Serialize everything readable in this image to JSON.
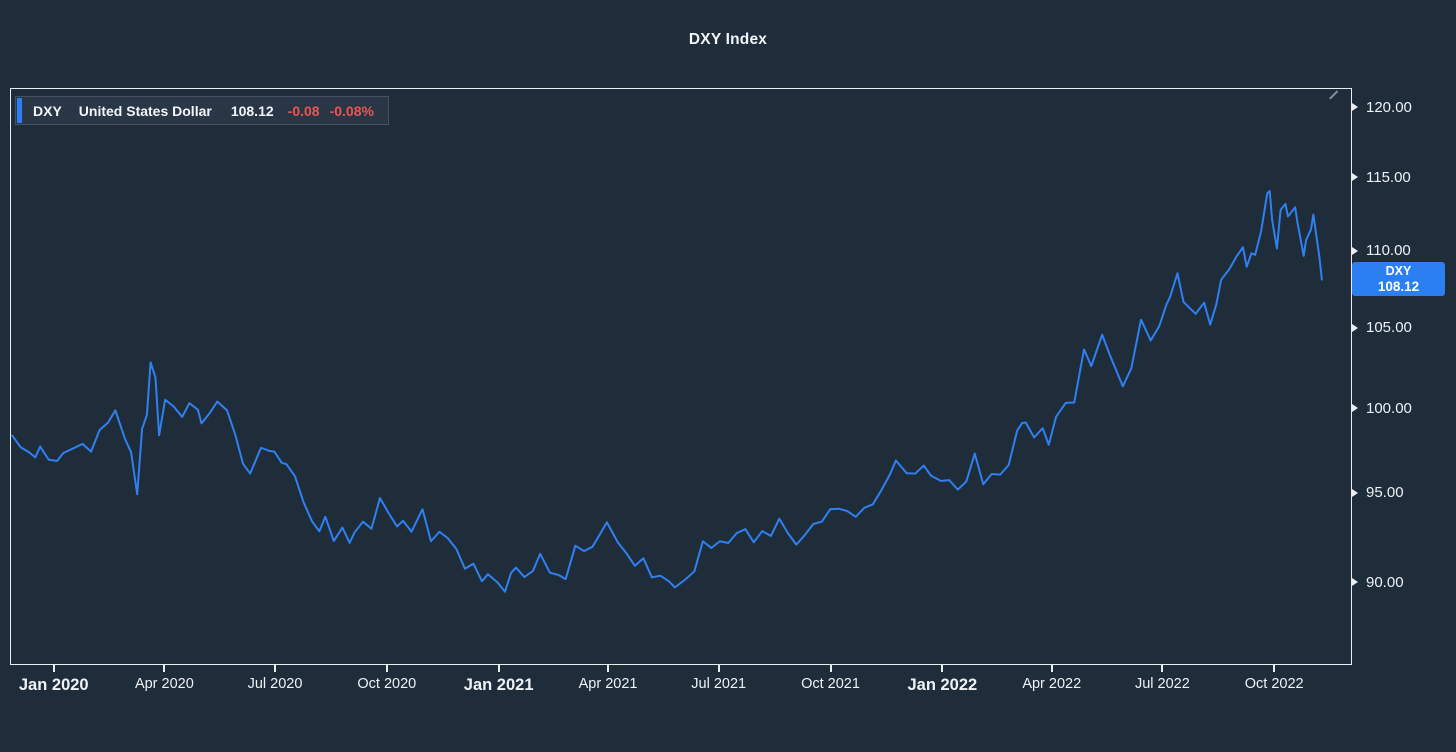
{
  "page": {
    "title": "DXY Index"
  },
  "legend": {
    "symbol": "DXY",
    "name": "United States Dollar",
    "last": "108.12",
    "change": "-0.08",
    "change_pct": "-0.08%"
  },
  "price_label": {
    "symbol": "DXY",
    "value": "108.12"
  },
  "colors": {
    "background": "#1f2c3a",
    "line": "#2f80f0",
    "badge": "#2b7ff2",
    "accent_bar": "#2b7ff2",
    "negative": "#ef5350",
    "axis_text": "#edf2f7",
    "frame": "#e9eef3",
    "title_text": "#f2f6fa"
  },
  "chart_data": {
    "type": "line",
    "title": "DXY Index",
    "series_name": "DXY — United States Dollar",
    "grid": false,
    "legend_position": "top-left",
    "y_scale": "log",
    "y_domain": [
      85.6,
      121.4
    ],
    "x_domain": [
      "2019-11-26",
      "2022-12-04"
    ],
    "last_price": 108.12,
    "change": -0.08,
    "change_pct": -0.08,
    "y_ticks": [
      {
        "value": 120,
        "label": "120.00"
      },
      {
        "value": 115,
        "label": "115.00"
      },
      {
        "value": 110,
        "label": "110.00"
      },
      {
        "value": 105,
        "label": "105.00"
      },
      {
        "value": 100,
        "label": "100.00"
      },
      {
        "value": 95,
        "label": "95.00"
      },
      {
        "value": 90,
        "label": "90.00"
      }
    ],
    "x_ticks": [
      {
        "date": "2020-01-01",
        "label": "Jan 2020",
        "bold": true
      },
      {
        "date": "2020-04-01",
        "label": "Apr 2020",
        "bold": false
      },
      {
        "date": "2020-07-01",
        "label": "Jul 2020",
        "bold": false
      },
      {
        "date": "2020-10-01",
        "label": "Oct 2020",
        "bold": false
      },
      {
        "date": "2021-01-01",
        "label": "Jan 2021",
        "bold": true
      },
      {
        "date": "2021-04-01",
        "label": "Apr 2021",
        "bold": false
      },
      {
        "date": "2021-07-01",
        "label": "Jul 2021",
        "bold": false
      },
      {
        "date": "2021-10-01",
        "label": "Oct 2021",
        "bold": false
      },
      {
        "date": "2022-01-01",
        "label": "Jan 2022",
        "bold": true
      },
      {
        "date": "2022-04-01",
        "label": "Apr 2022",
        "bold": false
      },
      {
        "date": "2022-07-01",
        "label": "Jul 2022",
        "bold": false
      },
      {
        "date": "2022-10-01",
        "label": "Oct 2022",
        "bold": false
      }
    ],
    "points": [
      [
        "2019-11-27",
        98.35
      ],
      [
        "2019-12-04",
        97.65
      ],
      [
        "2019-12-11",
        97.35
      ],
      [
        "2019-12-16",
        97.05
      ],
      [
        "2019-12-20",
        97.69
      ],
      [
        "2019-12-27",
        96.92
      ],
      [
        "2020-01-03",
        96.84
      ],
      [
        "2020-01-08",
        97.3
      ],
      [
        "2020-01-17",
        97.61
      ],
      [
        "2020-01-24",
        97.85
      ],
      [
        "2020-01-31",
        97.39
      ],
      [
        "2020-02-07",
        98.68
      ],
      [
        "2020-02-14",
        99.12
      ],
      [
        "2020-02-20",
        99.86
      ],
      [
        "2020-02-28",
        98.13
      ],
      [
        "2020-03-04",
        97.35
      ],
      [
        "2020-03-09",
        94.9
      ],
      [
        "2020-03-13",
        98.75
      ],
      [
        "2020-03-17",
        99.6
      ],
      [
        "2020-03-20",
        102.82
      ],
      [
        "2020-03-24",
        101.87
      ],
      [
        "2020-03-27",
        98.36
      ],
      [
        "2020-04-01",
        100.51
      ],
      [
        "2020-04-08",
        100.1
      ],
      [
        "2020-04-15",
        99.47
      ],
      [
        "2020-04-21",
        100.3
      ],
      [
        "2020-04-28",
        99.9
      ],
      [
        "2020-05-01",
        99.08
      ],
      [
        "2020-05-08",
        99.73
      ],
      [
        "2020-05-14",
        100.4
      ],
      [
        "2020-05-22",
        99.86
      ],
      [
        "2020-05-29",
        98.34
      ],
      [
        "2020-06-04",
        96.7
      ],
      [
        "2020-06-10",
        96.1
      ],
      [
        "2020-06-19",
        97.62
      ],
      [
        "2020-06-26",
        97.43
      ],
      [
        "2020-06-30",
        97.39
      ],
      [
        "2020-07-06",
        96.73
      ],
      [
        "2020-07-10",
        96.65
      ],
      [
        "2020-07-17",
        95.94
      ],
      [
        "2020-07-24",
        94.44
      ],
      [
        "2020-07-31",
        93.35
      ],
      [
        "2020-08-06",
        92.79
      ],
      [
        "2020-08-11",
        93.61
      ],
      [
        "2020-08-18",
        92.24
      ],
      [
        "2020-08-25",
        93.0
      ],
      [
        "2020-08-31",
        92.14
      ],
      [
        "2020-09-04",
        92.72
      ],
      [
        "2020-09-11",
        93.33
      ],
      [
        "2020-09-18",
        92.93
      ],
      [
        "2020-09-25",
        94.68
      ],
      [
        "2020-10-02",
        93.84
      ],
      [
        "2020-10-09",
        93.06
      ],
      [
        "2020-10-14",
        93.38
      ],
      [
        "2020-10-21",
        92.77
      ],
      [
        "2020-10-30",
        94.04
      ],
      [
        "2020-11-06",
        92.23
      ],
      [
        "2020-11-13",
        92.76
      ],
      [
        "2020-11-20",
        92.39
      ],
      [
        "2020-11-27",
        91.79
      ],
      [
        "2020-12-04",
        90.7
      ],
      [
        "2020-12-11",
        90.98
      ],
      [
        "2020-12-18",
        90.02
      ],
      [
        "2020-12-23",
        90.4
      ],
      [
        "2020-12-31",
        89.94
      ],
      [
        "2021-01-06",
        89.44
      ],
      [
        "2021-01-11",
        90.47
      ],
      [
        "2021-01-15",
        90.77
      ],
      [
        "2021-01-22",
        90.24
      ],
      [
        "2021-01-29",
        90.58
      ],
      [
        "2021-02-04",
        91.53
      ],
      [
        "2021-02-12",
        90.48
      ],
      [
        "2021-02-19",
        90.36
      ],
      [
        "2021-02-25",
        90.13
      ],
      [
        "2021-03-05",
        91.98
      ],
      [
        "2021-03-12",
        91.68
      ],
      [
        "2021-03-19",
        91.92
      ],
      [
        "2021-03-26",
        92.72
      ],
      [
        "2021-03-31",
        93.3
      ],
      [
        "2021-04-09",
        92.16
      ],
      [
        "2021-04-16",
        91.56
      ],
      [
        "2021-04-23",
        90.86
      ],
      [
        "2021-04-30",
        91.28
      ],
      [
        "2021-05-07",
        90.23
      ],
      [
        "2021-05-14",
        90.32
      ],
      [
        "2021-05-21",
        90.02
      ],
      [
        "2021-05-26",
        89.68
      ],
      [
        "2021-06-04",
        90.14
      ],
      [
        "2021-06-11",
        90.56
      ],
      [
        "2021-06-18",
        92.23
      ],
      [
        "2021-06-25",
        91.85
      ],
      [
        "2021-07-02",
        92.23
      ],
      [
        "2021-07-09",
        92.13
      ],
      [
        "2021-07-16",
        92.69
      ],
      [
        "2021-07-23",
        92.91
      ],
      [
        "2021-07-30",
        92.17
      ],
      [
        "2021-08-06",
        92.8
      ],
      [
        "2021-08-13",
        92.52
      ],
      [
        "2021-08-20",
        93.5
      ],
      [
        "2021-08-27",
        92.69
      ],
      [
        "2021-09-03",
        92.04
      ],
      [
        "2021-09-10",
        92.58
      ],
      [
        "2021-09-17",
        93.2
      ],
      [
        "2021-09-24",
        93.33
      ],
      [
        "2021-10-01",
        94.04
      ],
      [
        "2021-10-08",
        94.07
      ],
      [
        "2021-10-15",
        93.94
      ],
      [
        "2021-10-22",
        93.61
      ],
      [
        "2021-10-29",
        94.12
      ],
      [
        "2021-11-05",
        94.32
      ],
      [
        "2021-11-12",
        95.13
      ],
      [
        "2021-11-19",
        96.03
      ],
      [
        "2021-11-24",
        96.87
      ],
      [
        "2021-12-03",
        96.12
      ],
      [
        "2021-12-10",
        96.1
      ],
      [
        "2021-12-17",
        96.57
      ],
      [
        "2021-12-23",
        95.98
      ],
      [
        "2021-12-31",
        95.67
      ],
      [
        "2022-01-07",
        95.72
      ],
      [
        "2022-01-14",
        95.17
      ],
      [
        "2022-01-21",
        95.64
      ],
      [
        "2022-01-28",
        97.27
      ],
      [
        "2022-02-04",
        95.48
      ],
      [
        "2022-02-11",
        96.08
      ],
      [
        "2022-02-18",
        96.04
      ],
      [
        "2022-02-25",
        96.61
      ],
      [
        "2022-03-04",
        98.65
      ],
      [
        "2022-03-08",
        99.09
      ],
      [
        "2022-03-11",
        99.13
      ],
      [
        "2022-03-18",
        98.23
      ],
      [
        "2022-03-25",
        98.79
      ],
      [
        "2022-03-30",
        97.8
      ],
      [
        "2022-04-05",
        99.47
      ],
      [
        "2022-04-13",
        100.32
      ],
      [
        "2022-04-20",
        100.34
      ],
      [
        "2022-04-28",
        103.63
      ],
      [
        "2022-05-04",
        102.59
      ],
      [
        "2022-05-13",
        104.56
      ],
      [
        "2022-05-20",
        103.15
      ],
      [
        "2022-05-30",
        101.34
      ],
      [
        "2022-06-06",
        102.45
      ],
      [
        "2022-06-14",
        105.52
      ],
      [
        "2022-06-22",
        104.2
      ],
      [
        "2022-06-29",
        105.1
      ],
      [
        "2022-07-05",
        106.5
      ],
      [
        "2022-07-08",
        107.01
      ],
      [
        "2022-07-14",
        108.54
      ],
      [
        "2022-07-19",
        106.66
      ],
      [
        "2022-07-29",
        105.9
      ],
      [
        "2022-08-05",
        106.62
      ],
      [
        "2022-08-10",
        105.21
      ],
      [
        "2022-08-15",
        106.5
      ],
      [
        "2022-08-19",
        108.1
      ],
      [
        "2022-08-26",
        108.84
      ],
      [
        "2022-09-01",
        109.69
      ],
      [
        "2022-09-06",
        110.27
      ],
      [
        "2022-09-09",
        108.97
      ],
      [
        "2022-09-13",
        109.86
      ],
      [
        "2022-09-16",
        109.76
      ],
      [
        "2022-09-21",
        111.35
      ],
      [
        "2022-09-26",
        113.94
      ],
      [
        "2022-09-28",
        114.1
      ],
      [
        "2022-09-30",
        112.12
      ],
      [
        "2022-10-04",
        110.19
      ],
      [
        "2022-10-07",
        112.8
      ],
      [
        "2022-10-11",
        113.21
      ],
      [
        "2022-10-13",
        112.35
      ],
      [
        "2022-10-19",
        112.98
      ],
      [
        "2022-10-21",
        111.89
      ],
      [
        "2022-10-26",
        109.7
      ],
      [
        "2022-10-28",
        110.75
      ],
      [
        "2022-11-01",
        111.47
      ],
      [
        "2022-11-03",
        112.48
      ],
      [
        "2022-11-08",
        109.59
      ],
      [
        "2022-11-10",
        108.12
      ]
    ]
  }
}
